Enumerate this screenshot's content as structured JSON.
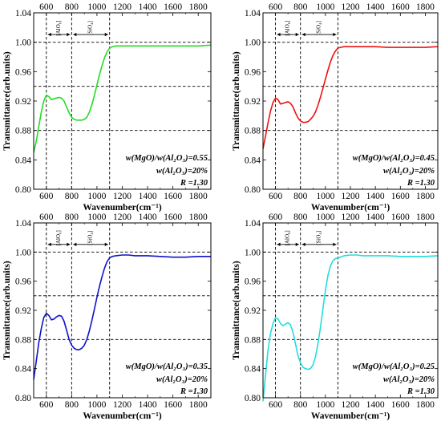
{
  "chart_data": [
    {
      "type": "line",
      "xlabel": "Wavenumber(cm⁻¹)",
      "ylabel": "Transmittance(arb.units)",
      "xlim": [
        500,
        1900
      ],
      "ylim": [
        0.8,
        1.04
      ],
      "x_ticks_bottom": [
        "600",
        "800",
        "1000",
        "1200",
        "1400",
        "1600",
        "1800"
      ],
      "x_ticks_top": [
        "600",
        "800",
        "1000",
        "1200",
        "1400",
        "1600",
        "1800"
      ],
      "y_ticks": [
        "0.80",
        "0.84",
        "0.88",
        "0.92",
        "0.96",
        "1.00",
        "1.04"
      ],
      "ref_vlines": [
        600,
        800,
        1100
      ],
      "ref_hlines": [
        0.88,
        0.94,
        1.0
      ],
      "band_labels": [
        "[AlO₆]",
        "[SiO₄]"
      ],
      "annotation": [
        "w(MgO)/w(Al₂O₃)=0.55",
        "w(Al₂O₃)=20%",
        "R =1.30"
      ],
      "color": "#22dd22",
      "series": [
        {
          "x": [
            500,
            520,
            540,
            560,
            580,
            600,
            620,
            640,
            660,
            680,
            700,
            720,
            740,
            760,
            780,
            800,
            820,
            840,
            860,
            880,
            900,
            920,
            940,
            960,
            980,
            1000,
            1020,
            1040,
            1060,
            1080,
            1100,
            1120,
            1150,
            1200,
            1250,
            1300,
            1400,
            1500,
            1600,
            1700,
            1800,
            1900
          ],
          "y": [
            0.85,
            0.865,
            0.885,
            0.905,
            0.92,
            0.928,
            0.926,
            0.922,
            0.923,
            0.924,
            0.925,
            0.924,
            0.92,
            0.912,
            0.904,
            0.898,
            0.895,
            0.894,
            0.894,
            0.894,
            0.895,
            0.898,
            0.905,
            0.915,
            0.928,
            0.942,
            0.956,
            0.968,
            0.979,
            0.987,
            0.992,
            0.994,
            0.995,
            0.995,
            0.995,
            0.995,
            0.995,
            0.995,
            0.995,
            0.995,
            0.995,
            0.996
          ]
        }
      ]
    },
    {
      "type": "line",
      "xlabel": "Wavenumber(cm⁻¹)",
      "ylabel": "Transmittance(arb.units)",
      "xlim": [
        500,
        1900
      ],
      "ylim": [
        0.8,
        1.04
      ],
      "x_ticks_bottom": [
        "600",
        "800",
        "1000",
        "1200",
        "1400",
        "1600",
        "1800"
      ],
      "x_ticks_top": [
        "600",
        "800",
        "1000",
        "1200",
        "1400",
        "1600",
        "1800"
      ],
      "y_ticks": [
        "0.80",
        "0.84",
        "0.88",
        "0.92",
        "0.96",
        "1.00",
        "1.04"
      ],
      "ref_vlines": [
        600,
        800,
        1100
      ],
      "ref_hlines": [
        0.88,
        0.94,
        1.0
      ],
      "band_labels": [
        "[AlO₆]",
        "[SiO₄]"
      ],
      "annotation": [
        "w(MgO)/w(Al₂O₃)=0.45",
        "w(Al₂O₃)=20%",
        "R =1.30"
      ],
      "color": "#ee1111",
      "series": [
        {
          "x": [
            500,
            520,
            540,
            560,
            580,
            600,
            620,
            640,
            660,
            680,
            700,
            720,
            740,
            760,
            780,
            800,
            820,
            840,
            860,
            880,
            900,
            920,
            940,
            960,
            980,
            1000,
            1020,
            1040,
            1060,
            1080,
            1100,
            1120,
            1150,
            1200,
            1250,
            1300,
            1400,
            1500,
            1600,
            1700,
            1800,
            1900
          ],
          "y": [
            0.855,
            0.872,
            0.89,
            0.906,
            0.918,
            0.924,
            0.922,
            0.916,
            0.917,
            0.918,
            0.919,
            0.917,
            0.912,
            0.904,
            0.897,
            0.893,
            0.891,
            0.891,
            0.892,
            0.895,
            0.899,
            0.905,
            0.914,
            0.925,
            0.937,
            0.95,
            0.962,
            0.973,
            0.982,
            0.988,
            0.992,
            0.993,
            0.994,
            0.994,
            0.994,
            0.994,
            0.994,
            0.993,
            0.993,
            0.993,
            0.993,
            0.994
          ]
        }
      ]
    },
    {
      "type": "line",
      "xlabel": "Wavenumber(cm⁻¹)",
      "ylabel": "Transmittance(arb.units)",
      "xlim": [
        500,
        1900
      ],
      "ylim": [
        0.8,
        1.04
      ],
      "x_ticks_bottom": [
        "600",
        "800",
        "1000",
        "1200",
        "1400",
        "1600",
        "1800"
      ],
      "x_ticks_top": [
        "600",
        "800",
        "1000",
        "1200",
        "1400",
        "1600",
        "1800"
      ],
      "y_ticks": [
        "0.80",
        "0.84",
        "0.88",
        "0.92",
        "0.96",
        "1.00",
        "1.04"
      ],
      "ref_vlines": [
        600,
        800,
        1100
      ],
      "ref_hlines": [
        0.88,
        0.94,
        1.0
      ],
      "band_labels": [
        "[AlO₆]",
        "[SiO₄]"
      ],
      "annotation": [
        "w(MgO)/w(Al₂O₃)=0.35",
        "w(Al₂O₃)=20%",
        "R =1.30"
      ],
      "color": "#1111cc",
      "series": [
        {
          "x": [
            500,
            520,
            540,
            560,
            580,
            600,
            620,
            640,
            660,
            680,
            700,
            720,
            740,
            760,
            780,
            800,
            820,
            840,
            860,
            880,
            900,
            920,
            940,
            960,
            980,
            1000,
            1020,
            1040,
            1060,
            1080,
            1100,
            1120,
            1150,
            1200,
            1250,
            1300,
            1400,
            1500,
            1600,
            1700,
            1800,
            1900
          ],
          "y": [
            0.825,
            0.85,
            0.875,
            0.895,
            0.91,
            0.916,
            0.913,
            0.907,
            0.908,
            0.911,
            0.913,
            0.912,
            0.905,
            0.893,
            0.88,
            0.872,
            0.868,
            0.866,
            0.866,
            0.868,
            0.872,
            0.88,
            0.892,
            0.906,
            0.922,
            0.938,
            0.953,
            0.966,
            0.978,
            0.987,
            0.992,
            0.994,
            0.995,
            0.996,
            0.996,
            0.995,
            0.995,
            0.994,
            0.993,
            0.993,
            0.994,
            0.994
          ]
        }
      ]
    },
    {
      "type": "line",
      "xlabel": "Wavenumber(cm⁻¹)",
      "ylabel": "Transmittance(arb.units)",
      "xlim": [
        500,
        1900
      ],
      "ylim": [
        0.8,
        1.04
      ],
      "x_ticks_bottom": [
        "600",
        "800",
        "1000",
        "1200",
        "1400",
        "1600",
        "1800"
      ],
      "x_ticks_top": [
        "600",
        "800",
        "1000",
        "1200",
        "1400",
        "1600",
        "1800"
      ],
      "y_ticks": [
        "0.80",
        "0.84",
        "0.88",
        "0.92",
        "0.96",
        "1.00",
        "1.04"
      ],
      "ref_vlines": [
        600,
        800,
        1100
      ],
      "ref_hlines": [
        0.88,
        0.94,
        1.0
      ],
      "band_labels": [
        "[AlO₆]",
        "[SiO₄]"
      ],
      "annotation": [
        "w(MgO)/w(Al₂O₃)=0.25",
        "w(Al₂O₃)=20%",
        "R =1.30"
      ],
      "color": "#22dddd",
      "series": [
        {
          "x": [
            500,
            520,
            540,
            560,
            580,
            600,
            620,
            640,
            660,
            680,
            700,
            720,
            740,
            760,
            780,
            800,
            820,
            840,
            860,
            880,
            900,
            920,
            940,
            960,
            980,
            1000,
            1020,
            1040,
            1060,
            1080,
            1100,
            1120,
            1150,
            1200,
            1250,
            1300,
            1400,
            1500,
            1600,
            1700,
            1800,
            1900
          ],
          "y": [
            0.795,
            0.83,
            0.865,
            0.888,
            0.902,
            0.91,
            0.908,
            0.902,
            0.899,
            0.901,
            0.903,
            0.9,
            0.89,
            0.874,
            0.858,
            0.848,
            0.842,
            0.84,
            0.839,
            0.84,
            0.845,
            0.856,
            0.874,
            0.896,
            0.922,
            0.948,
            0.968,
            0.981,
            0.988,
            0.991,
            0.992,
            0.993,
            0.995,
            0.996,
            0.996,
            0.995,
            0.995,
            0.995,
            0.994,
            0.994,
            0.994,
            0.995
          ]
        }
      ]
    }
  ]
}
